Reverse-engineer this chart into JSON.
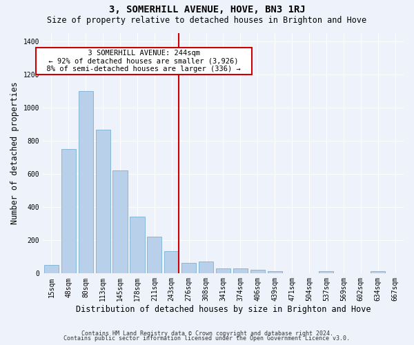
{
  "title": "3, SOMERHILL AVENUE, HOVE, BN3 1RJ",
  "subtitle": "Size of property relative to detached houses in Brighton and Hove",
  "xlabel": "Distribution of detached houses by size in Brighton and Hove",
  "ylabel": "Number of detached properties",
  "footnote1": "Contains HM Land Registry data © Crown copyright and database right 2024.",
  "footnote2": "Contains public sector information licensed under the Open Government Licence v3.0.",
  "categories": [
    "15sqm",
    "48sqm",
    "80sqm",
    "113sqm",
    "145sqm",
    "178sqm",
    "211sqm",
    "243sqm",
    "276sqm",
    "308sqm",
    "341sqm",
    "374sqm",
    "406sqm",
    "439sqm",
    "471sqm",
    "504sqm",
    "537sqm",
    "569sqm",
    "602sqm",
    "634sqm",
    "667sqm"
  ],
  "values": [
    50,
    748,
    1097,
    868,
    621,
    343,
    222,
    135,
    63,
    70,
    32,
    30,
    22,
    14,
    0,
    0,
    12,
    0,
    0,
    12,
    0
  ],
  "bar_color": "#b8d0ea",
  "bar_edge_color": "#7aafd4",
  "property_line_index": 7,
  "property_line_label": "3 SOMERHILL AVENUE: 244sqm",
  "annotation_line1": "← 92% of detached houses are smaller (3,926)",
  "annotation_line2": "8% of semi-detached houses are larger (336) →",
  "annotation_box_color": "#ffffff",
  "annotation_box_edge": "#cc0000",
  "vertical_line_color": "#cc0000",
  "ylim": [
    0,
    1450
  ],
  "bg_color": "#eef2fb",
  "grid_color": "#ffffff",
  "title_fontsize": 10,
  "subtitle_fontsize": 8.5,
  "axis_label_fontsize": 8.5,
  "tick_fontsize": 7,
  "annotation_fontsize": 7.5,
  "footnote_fontsize": 6
}
